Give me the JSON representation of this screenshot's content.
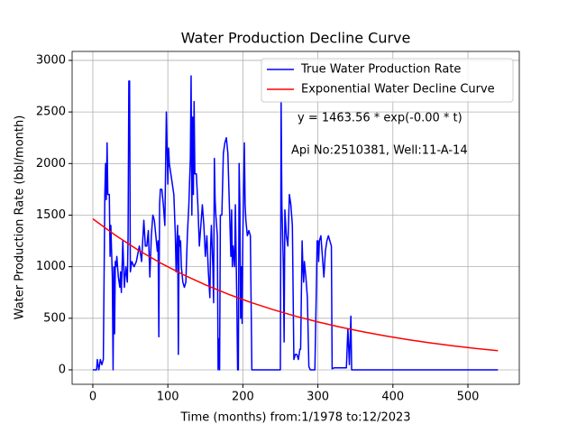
{
  "chart_data": {
    "type": "line",
    "title": "Water Production Decline Curve",
    "x_label": "Time (months) from:1/1978 to:12/2023",
    "y_label": "Water Production Rate (bbl/month)",
    "annotations": [
      "y = 1463.56 * exp(-0.00 * t)",
      "Api No:2510381, Well:11-A-14"
    ],
    "xlim": [
      -27.6,
      568.5
    ],
    "ylim": [
      -140,
      3087
    ],
    "xticks": [
      0,
      100,
      200,
      300,
      400,
      500
    ],
    "yticks": [
      0,
      500,
      1000,
      1500,
      2000,
      2500,
      3000
    ],
    "grid": true,
    "legend": "upper right",
    "series": [
      {
        "name": "True Water Production Rate",
        "color": "#0000ff",
        "x": [
          0,
          5,
          6,
          8,
          10,
          12,
          14,
          16,
          17,
          18,
          19,
          20,
          22,
          23,
          24,
          26,
          27,
          28,
          29,
          30,
          31,
          32,
          33,
          34,
          36,
          37,
          38,
          40,
          42,
          44,
          46,
          47,
          48,
          49,
          50,
          52,
          55,
          58,
          62,
          65,
          68,
          70,
          72,
          74,
          76,
          78,
          80,
          82,
          84,
          86,
          87,
          88,
          89,
          90,
          92,
          94,
          96,
          98,
          100,
          101,
          102,
          104,
          106,
          108,
          110,
          111,
          112,
          113,
          114,
          115,
          116,
          117,
          118,
          120,
          122,
          124,
          126,
          128,
          130,
          131,
          132,
          133,
          134,
          135,
          136,
          138,
          140,
          142,
          144,
          146,
          148,
          150,
          152,
          154,
          156,
          157,
          158,
          160,
          161,
          162,
          163,
          164,
          166,
          167,
          168,
          169,
          170,
          172,
          174,
          176,
          178,
          180,
          182,
          183,
          184,
          185,
          186,
          187,
          188,
          189,
          190,
          192,
          193,
          194,
          195,
          196,
          197,
          198,
          199,
          200,
          202,
          203,
          204,
          206,
          208,
          210,
          212,
          220,
          240,
          250,
          251,
          252,
          254,
          255,
          256,
          258,
          260,
          262,
          264,
          266,
          268,
          270,
          272,
          274,
          276,
          277,
          279,
          280,
          281,
          282,
          284,
          286,
          288,
          290,
          296,
          298,
          299,
          300,
          301,
          302,
          304,
          306,
          308,
          310,
          312,
          314,
          316,
          318,
          319,
          322,
          330,
          338,
          340,
          342,
          344,
          345,
          360,
          400,
          450,
          500,
          540
        ],
        "values": [
          0,
          0,
          100,
          0,
          100,
          50,
          100,
          1700,
          2000,
          1650,
          2200,
          1700,
          1700,
          1100,
          1400,
          900,
          0,
          1000,
          350,
          1050,
          1000,
          1100,
          1000,
          900,
          800,
          950,
          750,
          1250,
          800,
          1000,
          850,
          1300,
          2800,
          2800,
          950,
          1050,
          1000,
          1050,
          1200,
          1050,
          1450,
          1200,
          1200,
          1350,
          900,
          1300,
          1500,
          1450,
          1300,
          1150,
          1250,
          320,
          1600,
          1750,
          1750,
          1600,
          1400,
          2500,
          1800,
          2150,
          2000,
          1900,
          1800,
          1700,
          1300,
          950,
          1200,
          1400,
          150,
          1300,
          1200,
          1250,
          1000,
          850,
          800,
          850,
          1300,
          1600,
          2050,
          2850,
          1500,
          2450,
          1700,
          2600,
          1900,
          1900,
          1600,
          1200,
          1400,
          1600,
          1400,
          1100,
          1300,
          950,
          700,
          1200,
          1400,
          1000,
          650,
          2050,
          1650,
          1500,
          1300,
          0,
          300,
          0,
          1500,
          1500,
          2100,
          2200,
          2250,
          2100,
          1600,
          1350,
          1100,
          1550,
          1000,
          1200,
          1100,
          1000,
          1600,
          650,
          0,
          0,
          2000,
          1600,
          500,
          1000,
          450,
          1300,
          2200,
          1600,
          1450,
          1300,
          1350,
          1300,
          0,
          0,
          0,
          0,
          2600,
          1600,
          1000,
          270,
          1550,
          1300,
          1200,
          1700,
          1600,
          1400,
          100,
          150,
          150,
          100,
          200,
          200,
          1250,
          1000,
          850,
          1050,
          900,
          700,
          30,
          0,
          0,
          800,
          1250,
          1250,
          1050,
          1250,
          1300,
          1100,
          900,
          1150,
          1250,
          1300,
          1250,
          1200,
          10,
          20,
          20,
          20,
          400,
          50,
          520,
          0,
          0,
          0,
          0,
          0,
          0
        ]
      },
      {
        "name": "Exponential Water Decline Curve",
        "color": "#ff0000",
        "x": [
          0,
          30,
          60,
          90,
          120,
          150,
          180,
          210,
          240,
          270,
          300,
          330,
          360,
          390,
          420,
          450,
          480,
          510,
          540
        ],
        "values": [
          1463.6,
          1304.8,
          1163.2,
          1037.0,
          924.6,
          824.3,
          734.9,
          655.1,
          584.1,
          520.7,
          464.3,
          413.9,
          369.0,
          329.0,
          293.3,
          261.5,
          233.1,
          207.8,
          185.3
        ]
      }
    ]
  }
}
